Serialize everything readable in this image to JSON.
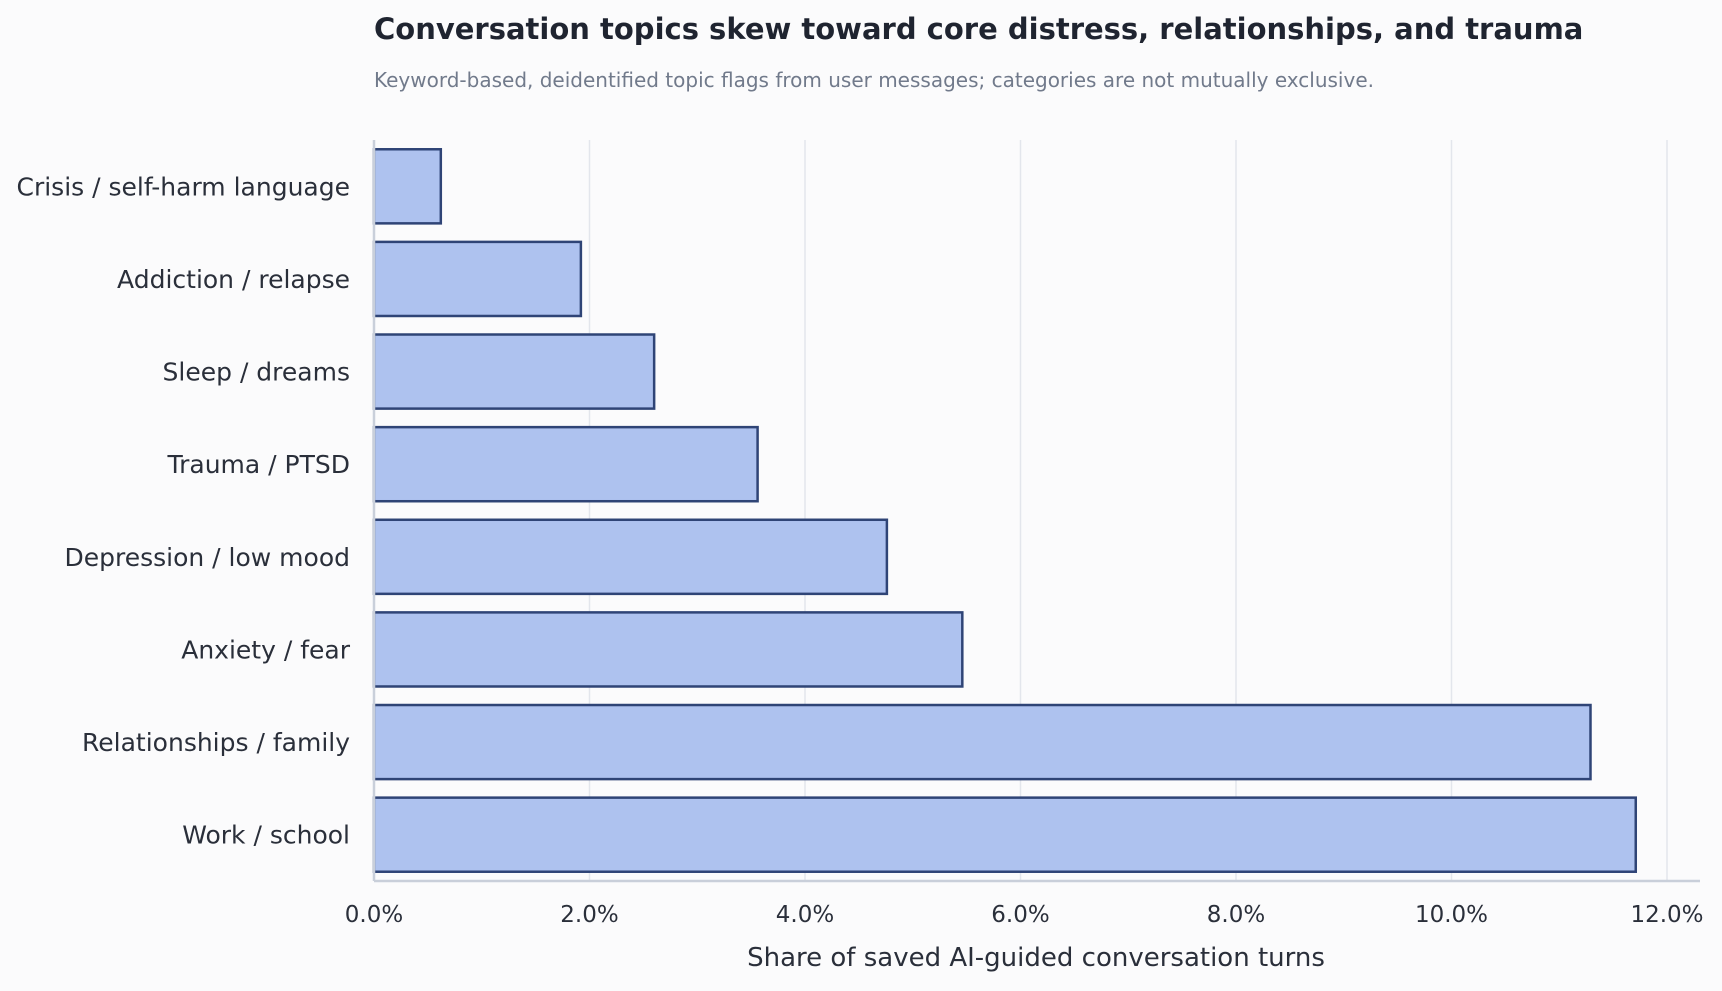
{
  "chart_data": {
    "type": "bar",
    "orientation": "horizontal",
    "title": "Conversation topics skew toward core distress, relationships, and trauma",
    "subtitle": "Keyword-based, deidentified topic flags from user messages; categories are not mutually exclusive.",
    "xlabel": "Share of saved AI-guided conversation turns",
    "ylabel": "",
    "xlim": [
      0,
      12
    ],
    "x_ticks": [
      0,
      2,
      4,
      6,
      8,
      10,
      12
    ],
    "x_tick_labels": [
      "0.0%",
      "2.0%",
      "4.0%",
      "6.0%",
      "8.0%",
      "10.0%",
      "12.0%"
    ],
    "grid": "vertical",
    "categories": [
      "Crisis / self-harm language",
      "Addiction / relapse",
      "Sleep / dreams",
      "Trauma / PTSD",
      "Depression / low mood",
      "Anxiety / fear",
      "Relationships / family",
      "Work / school"
    ],
    "values": [
      0.62,
      1.92,
      2.6,
      3.56,
      4.76,
      5.46,
      11.29,
      11.71
    ],
    "bar_fill": "#aec2ef",
    "bar_stroke": "#2f4476"
  }
}
